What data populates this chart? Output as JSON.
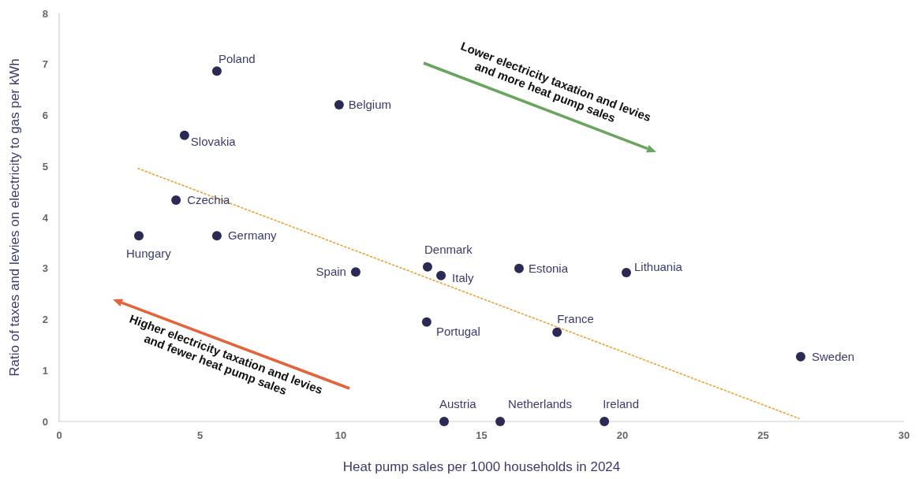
{
  "chart_data": {
    "type": "scatter",
    "xlabel": "Heat pump sales per 1000 households in 2024",
    "ylabel": "Ratio of taxes and levies on electricity to gas per kWh",
    "xlim": [
      0,
      30
    ],
    "xticks": [
      0,
      5,
      10,
      15,
      20,
      25,
      30
    ],
    "ylim": [
      0,
      8
    ],
    "yticks": [
      0,
      1,
      2,
      3,
      4,
      5,
      6,
      7,
      8
    ],
    "grid": false,
    "series": [
      {
        "color": "#2b2a55",
        "marker": "circle",
        "x": [
          5.6,
          9.94,
          4.45,
          4.15,
          2.83,
          5.6,
          10.53,
          13.08,
          13.56,
          16.33,
          20.14,
          13.05,
          17.68,
          26.33,
          13.67,
          15.66,
          19.36
        ],
        "values": [
          6.87,
          6.21,
          5.61,
          4.34,
          3.64,
          3.64,
          2.93,
          3.03,
          2.86,
          3.0,
          2.92,
          1.95,
          1.75,
          1.27,
          0,
          0,
          0
        ]
      },
      {
        "type": "line",
        "color": "#f0a030",
        "line_style": "dotted",
        "x": [
          2.8,
          26.27
        ],
        "values": [
          4.96,
          0.06
        ]
      }
    ],
    "annotations": [
      {
        "text": "Poland",
        "x": 5.6,
        "y": 6.87
      },
      {
        "text": "Belgium",
        "x": 9.94,
        "y": 6.21
      },
      {
        "text": "Slovakia",
        "x": 4.45,
        "y": 5.61
      },
      {
        "text": "Czechia",
        "x": 4.15,
        "y": 4.34
      },
      {
        "text": "Hungary",
        "x": 2.83,
        "y": 3.64
      },
      {
        "text": "Germany",
        "x": 5.6,
        "y": 3.64
      },
      {
        "text": "Spain",
        "x": 10.53,
        "y": 2.93
      },
      {
        "text": "Denmark",
        "x": 13.08,
        "y": 3.03
      },
      {
        "text": "Italy",
        "x": 13.56,
        "y": 2.86
      },
      {
        "text": "Estonia",
        "x": 16.33,
        "y": 3.0
      },
      {
        "text": "Lithuania",
        "x": 20.14,
        "y": 2.92
      },
      {
        "text": "Portugal",
        "x": 13.05,
        "y": 1.95
      },
      {
        "text": "France",
        "x": 17.68,
        "y": 1.75
      },
      {
        "text": "Sweden",
        "x": 26.33,
        "y": 1.27
      },
      {
        "text": "Austria",
        "x": 13.67,
        "y": 0
      },
      {
        "text": "Netherlands",
        "x": 15.66,
        "y": 0
      },
      {
        "text": "Ireland",
        "x": 19.36,
        "y": 0
      },
      "Lower electricity taxation and levies\nand more heat pump sales",
      "Higher electricity taxation and levies\nand fewer heat pump sales"
    ]
  }
}
